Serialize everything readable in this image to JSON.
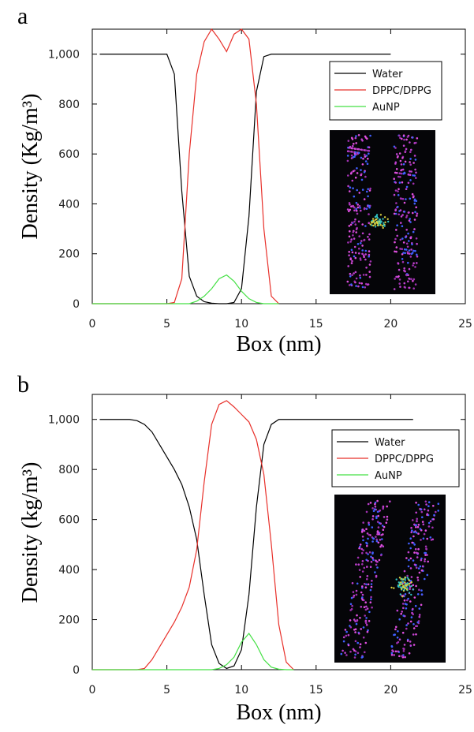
{
  "chart_data": [
    {
      "type": "line",
      "label": "a",
      "xlabel": "Box (nm)",
      "ylabel": "Density (Kg/m³)",
      "x": [
        0,
        0.5,
        1,
        1.5,
        2,
        2.5,
        3,
        3.5,
        4,
        4.5,
        5,
        5.5,
        6,
        6.5,
        7,
        7.5,
        8,
        8.5,
        9,
        9.5,
        10,
        10.5,
        11,
        11.5,
        12,
        12.5,
        13,
        13.5,
        14,
        14.5,
        15,
        15.5,
        16,
        16.5,
        17,
        17.5,
        18,
        18.5,
        19,
        19.5,
        20
      ],
      "series": [
        {
          "name": "Water",
          "color": "#000000",
          "values": [
            null,
            1000,
            1000,
            1000,
            1000,
            1000,
            1000,
            1000,
            1000,
            1000,
            1000,
            920,
            450,
            110,
            30,
            8,
            2,
            0,
            0,
            5,
            60,
            350,
            850,
            990,
            1000,
            1000,
            1000,
            1000,
            1000,
            1000,
            1000,
            1000,
            1000,
            1000,
            1000,
            1000,
            1000,
            1000,
            1000,
            1000,
            1000
          ]
        },
        {
          "name": "DPPC/DPPG",
          "color": "#e8302a",
          "values": [
            0,
            0,
            0,
            0,
            0,
            0,
            0,
            0,
            0,
            0,
            0,
            5,
            100,
            600,
            920,
            1050,
            1100,
            1060,
            1010,
            1080,
            1100,
            1060,
            800,
            300,
            30,
            0,
            null,
            null,
            null,
            null,
            null,
            null,
            null,
            null,
            null,
            null,
            null,
            null,
            null,
            null,
            null
          ]
        },
        {
          "name": "AuNP",
          "color": "#44e044",
          "values": [
            0,
            0,
            0,
            0,
            0,
            0,
            0,
            0,
            0,
            0,
            0,
            0,
            0,
            0,
            10,
            30,
            60,
            100,
            115,
            90,
            50,
            20,
            5,
            0,
            0,
            0,
            null,
            null,
            null,
            null,
            null,
            null,
            null,
            null,
            null,
            null,
            null,
            null,
            null,
            null,
            null
          ]
        }
      ],
      "xlim": [
        0,
        25
      ],
      "xticks": [
        0,
        5,
        10,
        15,
        20,
        25
      ],
      "ylim": [
        0,
        1100
      ],
      "yticks": [
        0,
        200,
        400,
        600,
        800,
        {
          "value": 1000,
          "label": "1,000"
        }
      ],
      "legend": "upper right"
    },
    {
      "type": "line",
      "label": "b",
      "xlabel": "Box (nm)",
      "ylabel": "Density (kg/m³)",
      "x": [
        0,
        0.5,
        1,
        1.5,
        2,
        2.5,
        3,
        3.5,
        4,
        4.5,
        5,
        5.5,
        6,
        6.5,
        7,
        7.5,
        8,
        8.5,
        9,
        9.5,
        10,
        10.5,
        11,
        11.5,
        12,
        12.5,
        13,
        13.5,
        14,
        14.5,
        15,
        15.5,
        16,
        16.5,
        17,
        17.5,
        18,
        18.5,
        19,
        19.5,
        20,
        20.5,
        21,
        21.5
      ],
      "series": [
        {
          "name": "Water",
          "color": "#000000",
          "values": [
            null,
            1000,
            1000,
            1000,
            1000,
            1000,
            995,
            980,
            950,
            900,
            850,
            800,
            740,
            650,
            520,
            300,
            100,
            25,
            5,
            15,
            80,
            300,
            650,
            900,
            980,
            1000,
            1000,
            1000,
            1000,
            1000,
            1000,
            1000,
            1000,
            1000,
            1000,
            1000,
            1000,
            1000,
            1000,
            1000,
            1000,
            1000,
            1000,
            1000
          ]
        },
        {
          "name": "DPPC/DPPG",
          "color": "#e8302a",
          "values": [
            0,
            0,
            0,
            0,
            0,
            0,
            0,
            5,
            40,
            90,
            140,
            190,
            250,
            330,
            480,
            750,
            980,
            1060,
            1075,
            1050,
            1020,
            990,
            920,
            780,
            500,
            180,
            30,
            0,
            null,
            null,
            null,
            null,
            null,
            null,
            null,
            null,
            null,
            null,
            null,
            null,
            null,
            null,
            null,
            null
          ]
        },
        {
          "name": "AuNP",
          "color": "#44e044",
          "values": [
            0,
            0,
            0,
            0,
            0,
            0,
            0,
            0,
            0,
            0,
            0,
            0,
            0,
            0,
            0,
            0,
            0,
            5,
            20,
            50,
            110,
            145,
            100,
            40,
            10,
            2,
            0,
            0,
            null,
            null,
            null,
            null,
            null,
            null,
            null,
            null,
            null,
            null,
            null,
            null,
            null,
            null,
            null,
            null
          ]
        }
      ],
      "xlim": [
        0,
        25
      ],
      "xticks": [
        0,
        5,
        10,
        15,
        20,
        25
      ],
      "ylim": [
        0,
        1100
      ],
      "yticks": [
        0,
        200,
        400,
        600,
        800,
        {
          "value": 1000,
          "label": "1,000"
        }
      ],
      "legend": "upper right"
    }
  ]
}
